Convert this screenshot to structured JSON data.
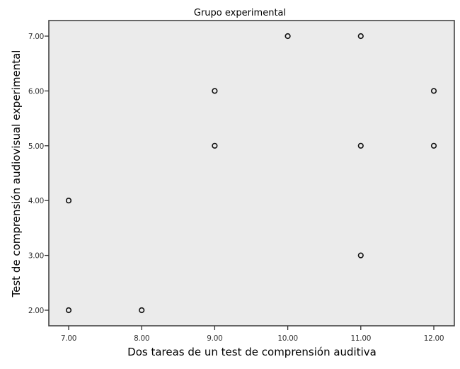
{
  "chart_data": {
    "type": "scatter",
    "title": "Grupo experimental",
    "xlabel": "Dos tareas de un test de comprensión auditiva",
    "ylabel": "Test de comprensión audiovisual experimental",
    "xlim": [
      7,
      12
    ],
    "ylim": [
      2,
      7
    ],
    "x_ticks": [
      "7.00",
      "8.00",
      "9.00",
      "10.00",
      "11.00",
      "12.00"
    ],
    "y_ticks": [
      "2.00",
      "3.00",
      "4.00",
      "5.00",
      "6.00",
      "7.00"
    ],
    "grid": false,
    "legend": null,
    "points": [
      {
        "x": 7,
        "y": 4
      },
      {
        "x": 7,
        "y": 2
      },
      {
        "x": 8,
        "y": 2
      },
      {
        "x": 9,
        "y": 6
      },
      {
        "x": 9,
        "y": 5
      },
      {
        "x": 10,
        "y": 7
      },
      {
        "x": 11,
        "y": 7
      },
      {
        "x": 11,
        "y": 5
      },
      {
        "x": 11,
        "y": 3
      },
      {
        "x": 12,
        "y": 6
      },
      {
        "x": 12,
        "y": 5
      }
    ],
    "colors": {
      "plot_background": "#ebebeb",
      "frame": "#444444",
      "marker": "#111111"
    }
  }
}
